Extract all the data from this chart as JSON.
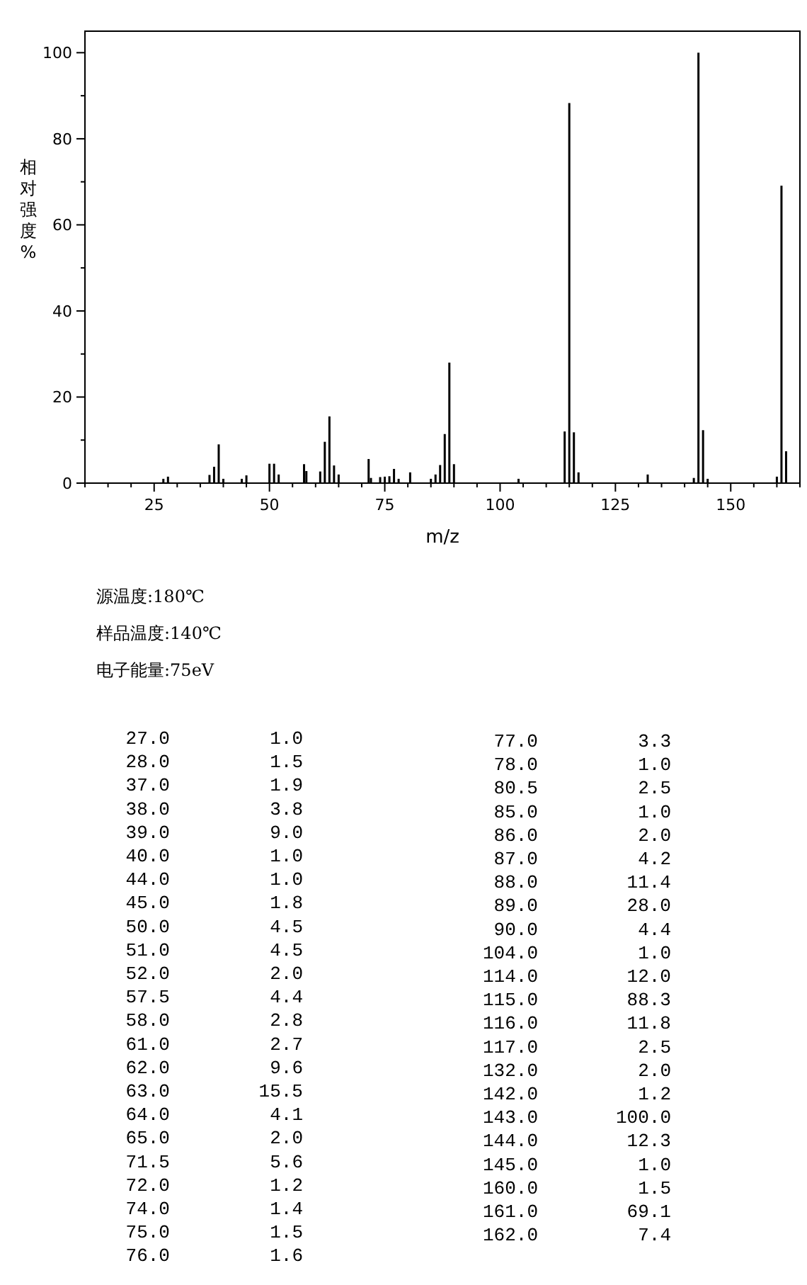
{
  "chart_data": [
    {
      "type": "bar",
      "xlabel": "m/z",
      "ylabel": "相对强度%",
      "x": [
        27,
        28,
        37,
        38,
        39,
        40,
        44,
        45,
        50,
        51,
        52,
        57.5,
        58,
        61,
        62,
        63,
        64,
        65,
        71.5,
        72,
        74,
        75,
        76,
        77,
        78,
        80.5,
        85,
        86,
        87,
        88,
        89,
        90,
        104,
        114,
        115,
        116,
        117,
        132,
        142,
        143,
        144,
        145,
        160,
        161,
        162
      ],
      "values": [
        1.0,
        1.5,
        1.9,
        3.8,
        9.0,
        1.0,
        1.0,
        1.8,
        4.5,
        4.5,
        2.0,
        4.4,
        2.8,
        2.7,
        9.6,
        15.5,
        4.1,
        2.0,
        5.6,
        1.2,
        1.4,
        1.5,
        1.6,
        3.3,
        1.0,
        2.5,
        1.0,
        2.0,
        4.2,
        11.4,
        28.0,
        4.4,
        1.0,
        12.0,
        88.3,
        11.8,
        2.5,
        2.0,
        1.2,
        100.0,
        12.3,
        1.0,
        1.5,
        69.1,
        7.4
      ],
      "color": "#000000",
      "xlim": [
        10,
        165
      ],
      "ylim": [
        0,
        105
      ],
      "xticks": [
        {
          "value": 10,
          "label": null
        },
        {
          "value": 15,
          "label": null
        },
        {
          "value": 20,
          "label": null
        },
        25,
        {
          "value": 30,
          "label": null
        },
        {
          "value": 35,
          "label": null
        },
        {
          "value": 40,
          "label": null
        },
        {
          "value": 45,
          "label": null
        },
        50,
        {
          "value": 55,
          "label": null
        },
        {
          "value": 60,
          "label": null
        },
        {
          "value": 65,
          "label": null
        },
        {
          "value": 70,
          "label": null
        },
        75,
        {
          "value": 80,
          "label": null
        },
        {
          "value": 85,
          "label": null
        },
        {
          "value": 90,
          "label": null
        },
        {
          "value": 95,
          "label": null
        },
        100,
        {
          "value": 105,
          "label": null
        },
        {
          "value": 110,
          "label": null
        },
        {
          "value": 115,
          "label": null
        },
        {
          "value": 120,
          "label": null
        },
        125,
        {
          "value": 130,
          "label": null
        },
        {
          "value": 135,
          "label": null
        },
        {
          "value": 140,
          "label": null
        },
        {
          "value": 145,
          "label": null
        },
        150,
        {
          "value": 155,
          "label": null
        },
        {
          "value": 160,
          "label": null
        },
        {
          "value": 165,
          "label": null
        }
      ],
      "yticks": [
        0,
        {
          "value": 10,
          "label": null
        },
        20,
        {
          "value": 30,
          "label": null
        },
        40,
        {
          "value": 50,
          "label": null
        },
        60,
        {
          "value": 70,
          "label": null
        },
        80,
        {
          "value": 90,
          "label": null
        },
        100
      ],
      "grid": false,
      "annotations": [
        "源温度:180℃",
        "样品温度:140℃",
        "电子能量:75eV"
      ]
    },
    {
      "type": "other",
      "annotations": [
        "27.0",
        "1.0",
        "28.0",
        "1.5",
        "37.0",
        "1.9",
        "38.0",
        "3.8",
        "39.0",
        "9.0",
        "40.0",
        "1.0",
        "44.0",
        "1.0",
        "45.0",
        "1.8",
        "50.0",
        "4.5",
        "51.0",
        "4.5",
        "52.0",
        "2.0",
        "57.5",
        "4.4",
        "58.0",
        "2.8",
        "61.0",
        "2.7",
        "62.0",
        "9.6",
        "63.0",
        "15.5",
        "64.0",
        "4.1",
        "65.0",
        "2.0",
        "71.5",
        "5.6",
        "72.0",
        "1.2",
        "74.0",
        "1.4",
        "75.0",
        "1.5",
        "76.0",
        "1.6",
        "77.0",
        "3.3",
        "78.0",
        "1.0",
        "80.5",
        "2.5",
        "85.0",
        "1.0",
        "86.0",
        "2.0",
        "87.0",
        "4.2",
        "88.0",
        "11.4",
        "89.0",
        "28.0",
        "90.0",
        "4.4",
        "104.0",
        "1.0",
        "114.0",
        "12.0",
        "115.0",
        "88.3",
        "116.0",
        "11.8",
        "117.0",
        "2.5",
        "132.0",
        "2.0",
        "142.0",
        "1.2",
        "143.0",
        "100.0",
        "144.0",
        "12.3",
        "145.0",
        "1.0",
        "160.0",
        "1.5",
        "161.0",
        "69.1",
        "162.0",
        "7.4"
      ]
    }
  ]
}
